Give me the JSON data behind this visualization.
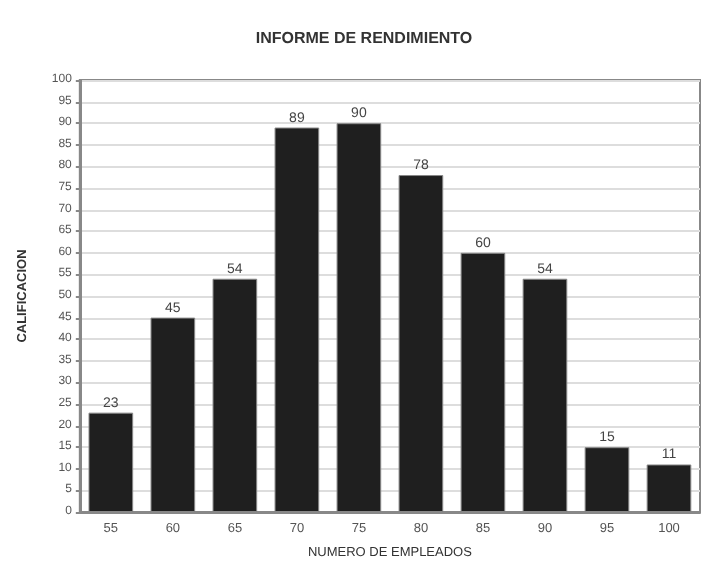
{
  "chart_data": {
    "type": "bar",
    "title": "INFORME DE RENDIMIENTO",
    "xlabel": "NUMERO DE EMPLEADOS",
    "ylabel": "CALIFICACION",
    "categories": [
      "55",
      "60",
      "65",
      "70",
      "75",
      "80",
      "85",
      "90",
      "95",
      "100"
    ],
    "values": [
      23,
      45,
      54,
      89,
      90,
      78,
      60,
      54,
      15,
      11
    ],
    "color": "#1f1f1f",
    "ylim": [
      0,
      100
    ],
    "yticks": [
      0,
      5,
      10,
      15,
      20,
      25,
      30,
      35,
      40,
      45,
      50,
      55,
      60,
      65,
      70,
      75,
      80,
      85,
      90,
      95,
      100
    ],
    "grid": true,
    "data_labels": true
  }
}
